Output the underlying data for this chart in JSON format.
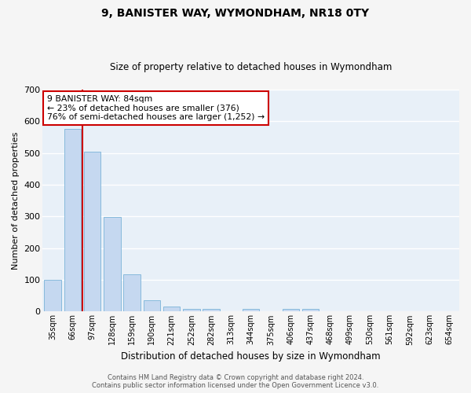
{
  "title": "9, BANISTER WAY, WYMONDHAM, NR18 0TY",
  "subtitle": "Size of property relative to detached houses in Wymondham",
  "xlabel": "Distribution of detached houses by size in Wymondham",
  "ylabel": "Number of detached properties",
  "bar_labels": [
    "35sqm",
    "66sqm",
    "97sqm",
    "128sqm",
    "159sqm",
    "190sqm",
    "221sqm",
    "252sqm",
    "282sqm",
    "313sqm",
    "344sqm",
    "375sqm",
    "406sqm",
    "437sqm",
    "468sqm",
    "499sqm",
    "530sqm",
    "561sqm",
    "592sqm",
    "623sqm",
    "654sqm"
  ],
  "bar_values": [
    100,
    575,
    505,
    298,
    118,
    36,
    15,
    8,
    8,
    0,
    8,
    0,
    8,
    8,
    0,
    0,
    0,
    0,
    0,
    0,
    0
  ],
  "bar_color": "#c5d8f0",
  "bar_edge_color": "#7ab4d8",
  "ylim": [
    0,
    700
  ],
  "yticks": [
    0,
    100,
    200,
    300,
    400,
    500,
    600,
    700
  ],
  "vline_x": 1.5,
  "vline_color": "#cc0000",
  "annotation_title": "9 BANISTER WAY: 84sqm",
  "annotation_line1": "← 23% of detached houses are smaller (376)",
  "annotation_line2": "76% of semi-detached houses are larger (1,252) →",
  "annotation_box_color": "#ffffff",
  "annotation_box_edge": "#cc0000",
  "background_color": "#e8f0f8",
  "fig_background": "#f5f5f5",
  "footer_line1": "Contains HM Land Registry data © Crown copyright and database right 2024.",
  "footer_line2": "Contains public sector information licensed under the Open Government Licence v3.0."
}
